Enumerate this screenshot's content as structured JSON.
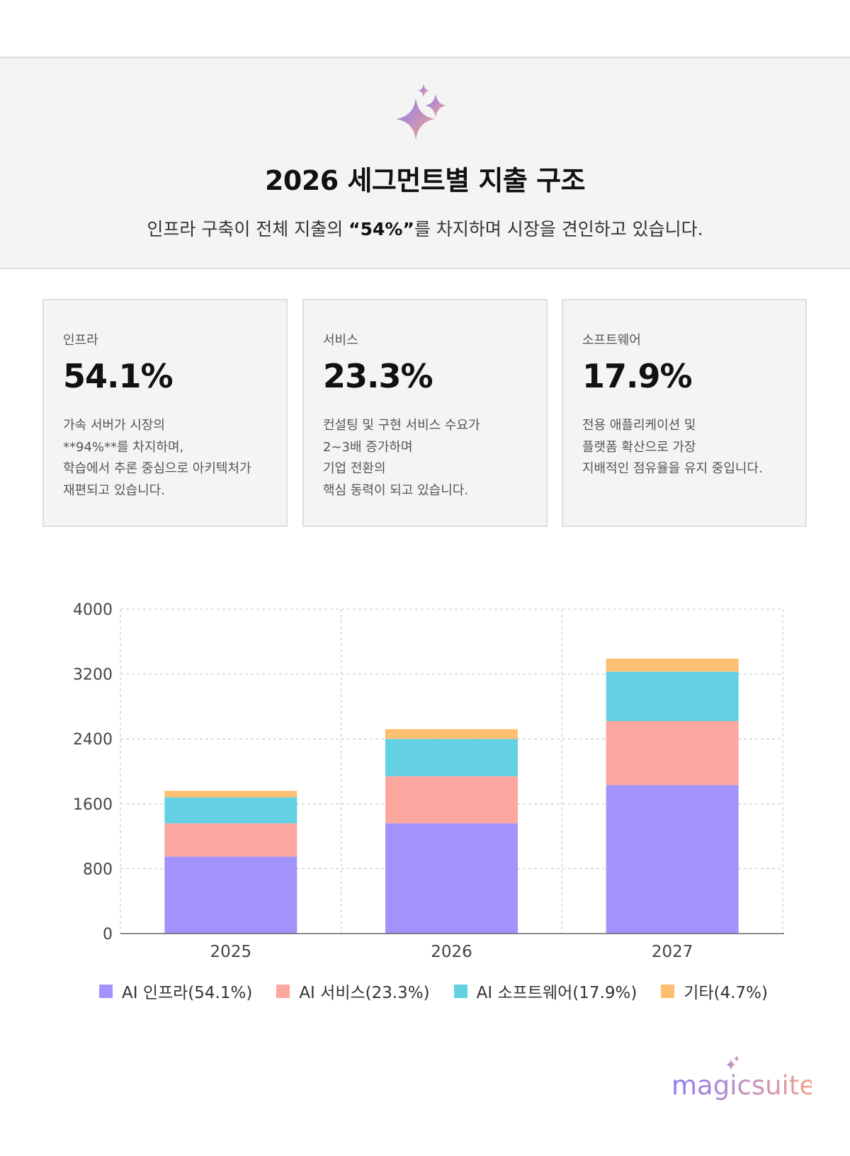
{
  "header": {
    "title": "2026 세그먼트별 지출 구조",
    "subtitle_before": "인프라 구축이 전체 지출의 ",
    "subtitle_highlight": "“54%”",
    "subtitle_after": "를 차지하며 시장을 견인하고 있습니다."
  },
  "cards": [
    {
      "label": "인프라",
      "value": "54.1%",
      "lines": [
        "가속 서버가 시장의",
        "**94%**를 차지하며,",
        "학습에서 추론 중심으로 아키텍처가",
        "재편되고 있습니다."
      ]
    },
    {
      "label": "서비스",
      "value": "23.3%",
      "lines": [
        "컨설팅 및 구현 서비스 수요가",
        "2~3배 증가하며",
        "기업 전환의",
        "핵심 동력이 되고 있습니다."
      ]
    },
    {
      "label": "소프트웨어",
      "value": "17.9%",
      "lines": [
        "전용 애플리케이션 및",
        "플랫폼 확산으로 가장",
        "지배적인 점유율을 유지 중입니다."
      ]
    }
  ],
  "chart_data": {
    "type": "bar",
    "stacked": true,
    "categories": [
      "2025",
      "2026",
      "2027"
    ],
    "series": [
      {
        "name": "AI 인프라(54.1%)",
        "color": "#a193fb",
        "values": [
          950,
          1360,
          1830
        ]
      },
      {
        "name": "AI 서비스(23.3%)",
        "color": "#fda7a1",
        "values": [
          410,
          580,
          790
        ]
      },
      {
        "name": "AI 소프트웨어(17.9%)",
        "color": "#64d0e3",
        "values": [
          320,
          460,
          610
        ]
      },
      {
        "name": "기타(4.7%)",
        "color": "#fdbf70",
        "values": [
          80,
          120,
          160
        ]
      }
    ],
    "ylim": [
      0,
      4000
    ],
    "yticks": [
      0,
      800,
      1600,
      2400,
      3200,
      4000
    ],
    "xlabel": "",
    "ylabel": "",
    "title": "",
    "grid": true,
    "legend_position": "bottom"
  },
  "brand": {
    "name": "magicsuite"
  },
  "colors": {
    "accent_purple": "#8b7cf6",
    "accent_peach": "#f4a58a",
    "card_bg": "#f4f4f4"
  }
}
